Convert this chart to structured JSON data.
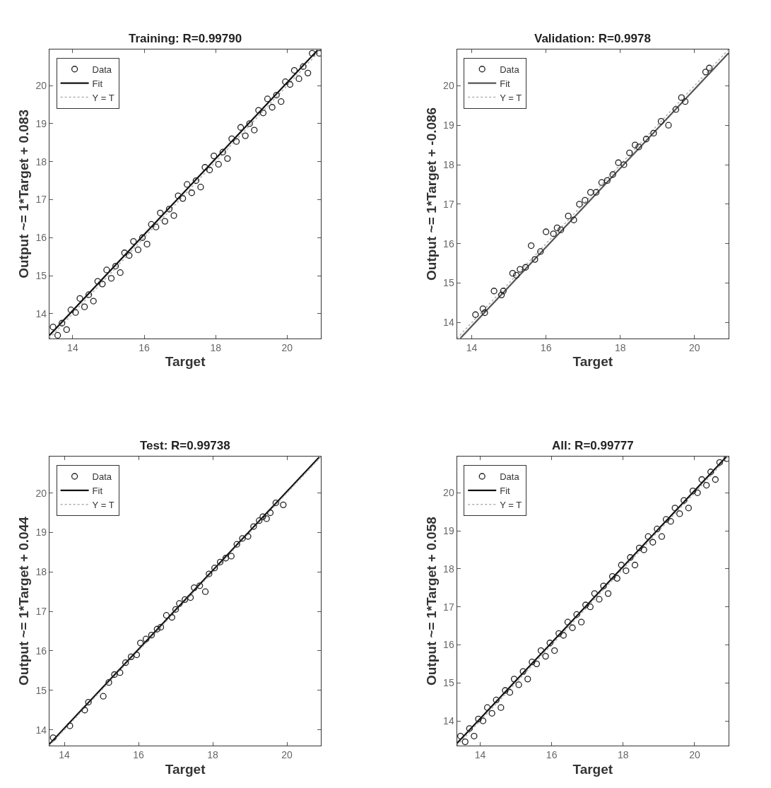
{
  "chart_data": [
    {
      "type": "scatter",
      "title": "Training: R=0.99790",
      "xlabel": "Target",
      "ylabel": "Output ~= 1*Target + 0.083",
      "xlim": [
        13.35,
        20.95
      ],
      "ylim": [
        13.35,
        20.95
      ],
      "xticks": [
        14,
        16,
        18,
        20
      ],
      "yticks": [
        14,
        15,
        16,
        17,
        18,
        19,
        20
      ],
      "legend": "top left",
      "series": [
        {
          "name": "Data",
          "marker": "circle",
          "color": "#222222",
          "x": [
            13.45,
            13.58,
            13.7,
            13.83,
            13.95,
            14.08,
            14.2,
            14.33,
            14.45,
            14.58,
            14.7,
            14.83,
            14.95,
            15.08,
            15.2,
            15.33,
            15.45,
            15.58,
            15.7,
            15.83,
            15.95,
            16.08,
            16.2,
            16.33,
            16.45,
            16.58,
            16.7,
            16.83,
            16.95,
            17.08,
            17.2,
            17.33,
            17.45,
            17.58,
            17.7,
            17.83,
            17.95,
            18.08,
            18.2,
            18.33,
            18.45,
            18.58,
            18.7,
            18.83,
            18.95,
            19.08,
            19.2,
            19.33,
            19.45,
            19.58,
            19.7,
            19.83,
            19.95,
            20.08,
            20.2,
            20.33,
            20.45,
            20.58,
            20.7,
            20.9
          ],
          "values": [
            13.65,
            13.43,
            13.75,
            13.58,
            14.1,
            14.03,
            14.4,
            14.18,
            14.5,
            14.33,
            14.85,
            14.78,
            15.15,
            14.93,
            15.25,
            15.08,
            15.6,
            15.53,
            15.9,
            15.68,
            16.0,
            15.83,
            16.35,
            16.28,
            16.65,
            16.43,
            16.75,
            16.58,
            17.1,
            17.03,
            17.4,
            17.18,
            17.5,
            17.33,
            17.85,
            17.78,
            18.15,
            17.93,
            18.25,
            18.08,
            18.6,
            18.53,
            18.9,
            18.68,
            19.0,
            18.83,
            19.35,
            19.28,
            19.65,
            19.43,
            19.75,
            19.58,
            20.1,
            20.03,
            20.4,
            20.18,
            20.5,
            20.33,
            20.85,
            20.85
          ]
        },
        {
          "name": "Fit",
          "type": "line",
          "line_style": "solid",
          "color": "#111111",
          "x": [
            13.35,
            20.85
          ],
          "values": [
            13.43,
            20.93
          ]
        },
        {
          "name": "Y = T",
          "type": "line",
          "line_style": "dotted",
          "color": "#b0b0b0",
          "x": [
            13.35,
            20.95
          ],
          "values": [
            13.35,
            20.95
          ]
        }
      ]
    },
    {
      "type": "scatter",
      "title": "Validation: R=0.9978",
      "xlabel": "Target",
      "ylabel": "Output ~= 1*Target + -0.086",
      "xlim": [
        13.6,
        20.92
      ],
      "ylim": [
        13.6,
        20.92
      ],
      "xticks": [
        14,
        16,
        18,
        20
      ],
      "yticks": [
        14,
        15,
        16,
        17,
        18,
        19,
        20
      ],
      "legend": "top left",
      "series": [
        {
          "name": "Data",
          "marker": "circle",
          "color": "#222222",
          "x": [
            14.1,
            14.3,
            14.35,
            14.6,
            14.8,
            14.85,
            15.1,
            15.2,
            15.3,
            15.45,
            15.6,
            15.7,
            15.85,
            16.0,
            16.2,
            16.3,
            16.4,
            16.6,
            16.75,
            16.9,
            17.05,
            17.2,
            17.35,
            17.5,
            17.65,
            17.8,
            17.95,
            18.1,
            18.25,
            18.4,
            18.5,
            18.7,
            18.9,
            19.1,
            19.3,
            19.5,
            19.65,
            19.75,
            20.3,
            20.4
          ],
          "values": [
            14.2,
            14.35,
            14.25,
            14.8,
            14.7,
            14.8,
            15.25,
            15.2,
            15.35,
            15.4,
            15.95,
            15.6,
            15.8,
            16.3,
            16.25,
            16.4,
            16.35,
            16.7,
            16.6,
            17.0,
            17.1,
            17.3,
            17.3,
            17.55,
            17.6,
            17.75,
            18.05,
            18.0,
            18.3,
            18.5,
            18.45,
            18.65,
            18.8,
            19.1,
            19.0,
            19.4,
            19.7,
            19.6,
            20.35,
            20.45
          ]
        },
        {
          "name": "Fit",
          "type": "line",
          "line_style": "solid",
          "color": "#555555",
          "x": [
            13.69,
            20.92
          ],
          "values": [
            13.6,
            20.83
          ]
        },
        {
          "name": "Y = T",
          "type": "line",
          "line_style": "dotted",
          "color": "#b0b0b0",
          "x": [
            13.6,
            20.92
          ],
          "values": [
            13.6,
            20.92
          ]
        }
      ]
    },
    {
      "type": "scatter",
      "title": "Test: R=0.99738",
      "xlabel": "Target",
      "ylabel": "Output ~= 1*Target + 0.044",
      "xlim": [
        13.6,
        20.92
      ],
      "ylim": [
        13.6,
        20.92
      ],
      "xticks": [
        14,
        16,
        18,
        20
      ],
      "yticks": [
        14,
        15,
        16,
        17,
        18,
        19,
        20
      ],
      "legend": "top left",
      "series": [
        {
          "name": "Data",
          "marker": "circle",
          "color": "#222222",
          "x": [
            13.7,
            14.15,
            14.55,
            14.65,
            15.05,
            15.2,
            15.35,
            15.5,
            15.65,
            15.8,
            15.95,
            16.05,
            16.2,
            16.35,
            16.5,
            16.6,
            16.75,
            16.9,
            17.0,
            17.1,
            17.25,
            17.4,
            17.5,
            17.65,
            17.8,
            17.9,
            18.05,
            18.2,
            18.35,
            18.5,
            18.65,
            18.8,
            18.95,
            19.1,
            19.25,
            19.35,
            19.45,
            19.55,
            19.7,
            19.9
          ],
          "values": [
            13.8,
            14.1,
            14.5,
            14.7,
            14.85,
            15.2,
            15.4,
            15.45,
            15.7,
            15.85,
            15.9,
            16.2,
            16.3,
            16.4,
            16.55,
            16.6,
            16.9,
            16.85,
            17.05,
            17.2,
            17.3,
            17.35,
            17.6,
            17.65,
            17.5,
            17.95,
            18.1,
            18.25,
            18.35,
            18.4,
            18.7,
            18.85,
            18.9,
            19.15,
            19.3,
            19.4,
            19.35,
            19.5,
            19.75,
            19.7
          ]
        },
        {
          "name": "Fit",
          "type": "line",
          "line_style": "solid",
          "color": "#111111",
          "x": [
            13.6,
            20.87
          ],
          "values": [
            13.64,
            20.91
          ]
        },
        {
          "name": "Y = T",
          "type": "line",
          "line_style": "dotted",
          "color": "#b0b0b0",
          "x": [
            13.6,
            20.92
          ],
          "values": [
            13.6,
            20.92
          ]
        }
      ]
    },
    {
      "type": "scatter",
      "title": "All: R=0.99777",
      "xlabel": "Target",
      "ylabel": "Output ~= 1*Target + 0.058",
      "xlim": [
        13.35,
        20.95
      ],
      "ylim": [
        13.35,
        20.95
      ],
      "xticks": [
        14,
        16,
        18,
        20
      ],
      "yticks": [
        14,
        15,
        16,
        17,
        18,
        19,
        20
      ],
      "legend": "top left",
      "series": [
        {
          "name": "Data",
          "marker": "circle",
          "color": "#222222",
          "x": [
            13.45,
            13.58,
            13.7,
            13.83,
            13.95,
            14.08,
            14.2,
            14.33,
            14.45,
            14.58,
            14.7,
            14.83,
            14.95,
            15.08,
            15.2,
            15.33,
            15.45,
            15.58,
            15.7,
            15.83,
            15.95,
            16.08,
            16.2,
            16.33,
            16.45,
            16.58,
            16.7,
            16.83,
            16.95,
            17.08,
            17.2,
            17.33,
            17.45,
            17.58,
            17.7,
            17.83,
            17.95,
            18.08,
            18.2,
            18.33,
            18.45,
            18.58,
            18.7,
            18.83,
            18.95,
            19.08,
            19.2,
            19.33,
            19.45,
            19.58,
            19.7,
            19.83,
            19.95,
            20.08,
            20.2,
            20.33,
            20.45,
            20.58,
            20.7,
            20.9
          ],
          "values": [
            13.6,
            13.45,
            13.8,
            13.6,
            14.05,
            14.0,
            14.35,
            14.2,
            14.55,
            14.35,
            14.8,
            14.75,
            15.1,
            14.95,
            15.3,
            15.1,
            15.55,
            15.5,
            15.85,
            15.7,
            16.05,
            15.85,
            16.3,
            16.25,
            16.6,
            16.45,
            16.8,
            16.6,
            17.05,
            17.0,
            17.35,
            17.2,
            17.55,
            17.35,
            17.8,
            17.75,
            18.1,
            17.95,
            18.3,
            18.1,
            18.55,
            18.5,
            18.85,
            18.7,
            19.05,
            18.85,
            19.3,
            19.25,
            19.6,
            19.45,
            19.8,
            19.6,
            20.05,
            20.0,
            20.35,
            20.2,
            20.55,
            20.35,
            20.8,
            20.9
          ]
        },
        {
          "name": "Fit",
          "type": "line",
          "line_style": "solid",
          "color": "#111111",
          "x": [
            13.35,
            20.89
          ],
          "values": [
            13.41,
            20.95
          ]
        },
        {
          "name": "Y = T",
          "type": "line",
          "line_style": "dotted",
          "color": "#b0b0b0",
          "x": [
            13.35,
            20.95
          ],
          "values": [
            13.35,
            20.95
          ]
        }
      ]
    }
  ]
}
